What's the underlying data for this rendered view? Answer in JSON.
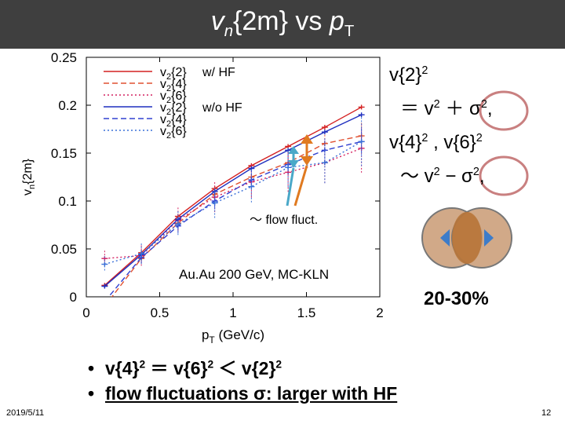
{
  "slide": {
    "title_main": "v",
    "title_sub": "n",
    "title_rest": "{2m} vs ",
    "title_p": "p",
    "title_p_sub": "T",
    "date": "2019/5/11",
    "page": "12"
  },
  "formulas": {
    "line1": "v{2}",
    "line1_sup": "2",
    "line2_pre": "＝ v",
    "line2_sup1": "2",
    "line2_mid": " ＋ σ",
    "line2_sup2": "2",
    "line2_end": ",",
    "line3_a": "v{4}",
    "line3_sup_a": "2",
    "line3_b": " , v{6}",
    "line3_sup_b": "2",
    "line4_pre": "～ v",
    "line4_sup1": "2",
    "line4_mid": " − σ",
    "line4_sup2": "2",
    "line4_end": ","
  },
  "annotations": {
    "flow_fluct": "～ flow fluct.",
    "system": "Au.Au 200 GeV, MC-KLN",
    "centrality": "20-30%"
  },
  "bullets": {
    "b1_a": "v{4}",
    "b1_sup_a": "2",
    "b1_b": " ＝ v{6}",
    "b1_sup_b": "2",
    "b1_c": " ＜ v{2}",
    "b1_sup_c": "2",
    "b2": "flow fluctuations σ: larger with HF "
  },
  "colors": {
    "red": "#d42020",
    "blue": "#1f2fbf",
    "arrow_orange": "#e07a20",
    "arrow_cyan": "#4aa8c8",
    "ring": "#c98080",
    "title_bg": "#3f3f3f"
  },
  "chart_data": {
    "type": "line",
    "xlabel": "p_T (GeV/c)",
    "ylabel": "v_n{2m}",
    "xlim": [
      0,
      2
    ],
    "ylim": [
      0,
      0.25
    ],
    "xticks": [
      "0",
      "0.5",
      "1",
      "1.5",
      "2"
    ],
    "yticks": [
      "0",
      "0.05",
      "0.1",
      "0.15",
      "0.2",
      "0.25"
    ],
    "legend_groups": [
      {
        "label": "w/   HF",
        "color": "#d42020"
      },
      {
        "label": "w/o HF",
        "color": "#1f2fbf"
      }
    ],
    "x": [
      0.125,
      0.375,
      0.625,
      0.875,
      1.125,
      1.375,
      1.625,
      1.875
    ],
    "series": [
      {
        "name": "v2{2}",
        "group": "w/   HF",
        "style": "solid",
        "color": "#d42020",
        "values": [
          0.012,
          0.046,
          0.084,
          0.113,
          0.137,
          0.157,
          0.177,
          0.198
        ]
      },
      {
        "name": "v2{4}",
        "group": "w/   HF",
        "style": "dashed",
        "color": "#e05030",
        "values": [
          -0.01,
          0.04,
          0.077,
          0.107,
          0.125,
          0.14,
          0.16,
          0.168
        ]
      },
      {
        "name": "v2{6}",
        "group": "w/   HF",
        "style": "dotted",
        "color": "#d42060",
        "values": [
          0.04,
          0.043,
          0.08,
          0.104,
          0.12,
          0.13,
          0.14,
          0.155
        ]
      },
      {
        "name": "v2{2}",
        "group": "w/o HF",
        "style": "solid",
        "color": "#1f2fbf",
        "values": [
          0.011,
          0.044,
          0.081,
          0.11,
          0.134,
          0.153,
          0.172,
          0.19
        ]
      },
      {
        "name": "v2{4}",
        "group": "w/o HF",
        "style": "dashed",
        "color": "#3040d0",
        "values": [
          -0.005,
          0.041,
          0.074,
          0.1,
          0.122,
          0.138,
          0.153,
          0.162
        ]
      },
      {
        "name": "v2{6}",
        "group": "w/o HF",
        "style": "dotted",
        "color": "#3a70d8",
        "values": [
          0.034,
          0.045,
          0.076,
          0.098,
          0.115,
          0.135,
          0.14,
          0.162
        ]
      }
    ]
  }
}
